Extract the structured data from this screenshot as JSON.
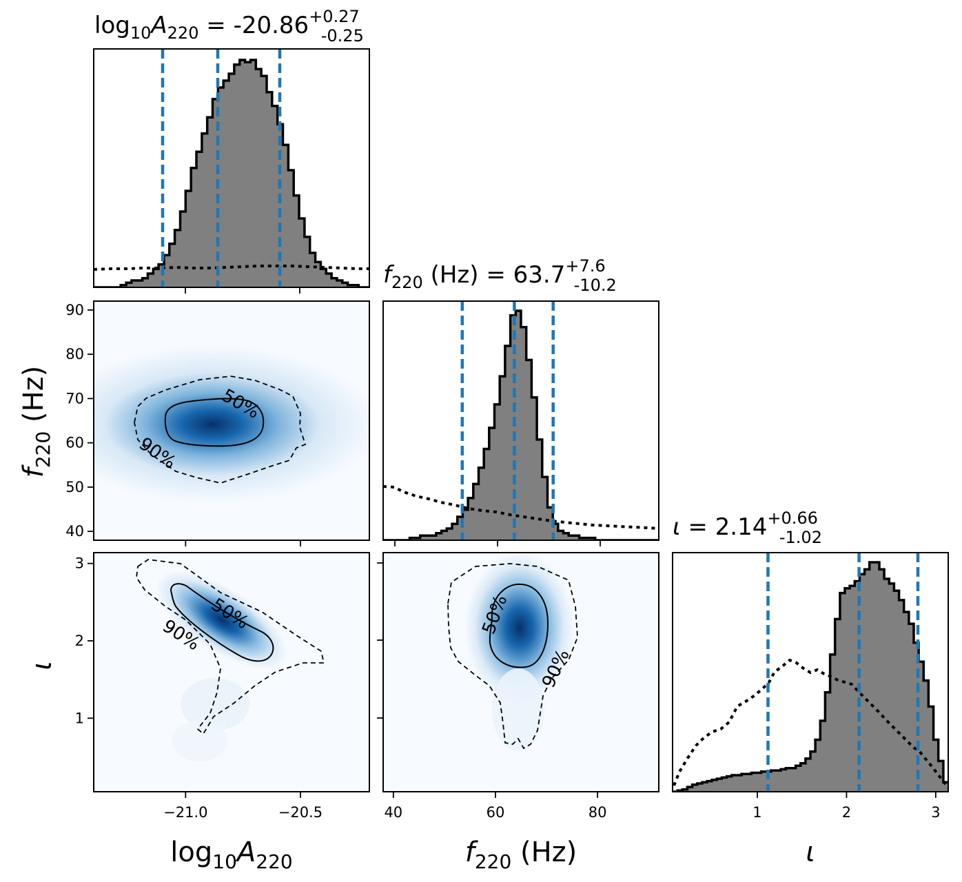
{
  "chart_data": {
    "type": "corner",
    "parameters": [
      {
        "id": "logA",
        "label": "log10A220",
        "range": [
          -21.4,
          -20.2
        ],
        "ticks": [
          "-21.0",
          "-20.5"
        ],
        "ticks_shown": false
      },
      {
        "id": "f",
        "label": "f220 (Hz)",
        "range": [
          38,
          92
        ],
        "ticks": [
          "40",
          "60",
          "80"
        ],
        "ticks_shown": true
      },
      {
        "id": "iota",
        "label": "ι",
        "range": [
          0.05,
          3.14
        ],
        "ticks": [
          "1",
          "2",
          "3"
        ],
        "ticks_shown": true
      }
    ],
    "titles": [
      {
        "param": "log10A220",
        "median": "-20.86",
        "upper": "+0.27",
        "lower": "-0.25"
      },
      {
        "param": "f220 (Hz)",
        "median": "63.7",
        "upper": "+7.6",
        "lower": "-10.2"
      },
      {
        "param": "ι",
        "median": "2.14",
        "upper": "+0.66",
        "lower": "-1.02"
      }
    ],
    "quantiles": {
      "logA": [
        -21.1,
        -20.86,
        -20.59
      ],
      "f": [
        53.5,
        63.7,
        71.3
      ],
      "iota": [
        1.12,
        2.14,
        2.8
      ]
    },
    "posterior_marginals": [
      {
        "param": "logA",
        "bins": [
          -21.4,
          -20.2
        ],
        "counts": [
          0,
          0,
          0,
          0,
          0,
          1,
          2,
          3,
          3,
          4,
          6,
          8,
          10,
          14,
          19,
          25,
          33,
          42,
          52,
          59,
          67,
          74,
          82,
          87,
          90,
          93,
          97,
          99,
          98,
          99,
          95,
          92,
          85,
          79,
          71,
          62,
          51,
          40,
          30,
          22,
          15,
          11,
          8,
          6,
          4,
          3,
          2,
          1,
          1,
          0,
          0
        ]
      },
      {
        "param": "f",
        "bins": [
          38,
          92
        ],
        "counts": [
          0,
          0,
          0,
          0,
          0,
          1,
          1,
          2,
          2,
          2,
          3,
          4,
          5,
          7,
          10,
          13,
          18,
          24,
          31,
          39,
          48,
          58,
          70,
          83,
          96,
          98,
          91,
          77,
          61,
          43,
          27,
          14,
          7,
          4,
          3,
          2,
          2,
          1,
          1,
          1,
          0,
          0,
          0,
          0,
          0,
          0,
          0,
          0,
          0,
          0,
          0,
          0
        ]
      },
      {
        "param": "iota",
        "bins": [
          0.05,
          3.14
        ],
        "counts": [
          0.0,
          0.5,
          1,
          2,
          3,
          3.5,
          4,
          4.5,
          5,
          5.5,
          6,
          6.5,
          7,
          7,
          7.5,
          7.5,
          8,
          8,
          8.5,
          8.5,
          9,
          9,
          9.5,
          10,
          10,
          11,
          12,
          14,
          17,
          22,
          30,
          42,
          58,
          73,
          84,
          86,
          87,
          89,
          92,
          94,
          97,
          97,
          94,
          90,
          88,
          85,
          81,
          76,
          71,
          63,
          55,
          47,
          36,
          22,
          13,
          4
        ]
      }
    ],
    "prior_marginals": [
      {
        "param": "logA",
        "trend": "flat, rising slightly toward center"
      },
      {
        "param": "f",
        "trend": "declining from low f to high f"
      },
      {
        "param": "iota",
        "trend": "peaked near 1.4, like sin(ι)"
      }
    ],
    "joint_2d": [
      {
        "x": "logA",
        "y": "f",
        "peak": [
          -20.9,
          64
        ],
        "contours": [
          "50%",
          "90%"
        ]
      },
      {
        "x": "logA",
        "y": "iota",
        "peak": [
          -20.9,
          2.3
        ],
        "contours": [
          "50%",
          "90%"
        ]
      },
      {
        "x": "f",
        "y": "iota",
        "peak": [
          64,
          2.1
        ],
        "contours": [
          "50%",
          "90%"
        ]
      }
    ],
    "colors": {
      "hist_fill": "#808080",
      "quantile": "#1f77b4",
      "density": "#08519c"
    }
  }
}
